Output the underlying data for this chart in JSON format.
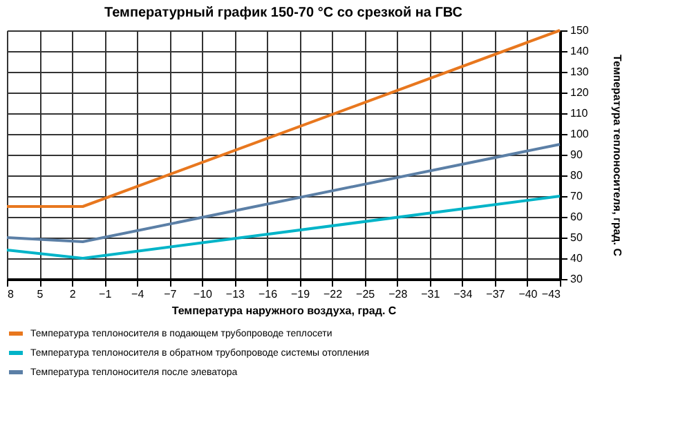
{
  "chart_data": {
    "type": "line",
    "title": "Температурный график 150-70 °С со срезкой на ГВС",
    "xlabel": "Температура наружного воздуха, град. С",
    "ylabel": "Температура теплоносителя, град. С",
    "xlim": [
      8,
      -43
    ],
    "xticks": [
      8,
      5,
      2,
      -1,
      -4,
      -7,
      -10,
      -13,
      -16,
      -19,
      -22,
      -25,
      -28,
      -31,
      -34,
      -37,
      -40,
      -43
    ],
    "ylim": [
      30,
      150
    ],
    "yticks": [
      30,
      40,
      50,
      60,
      70,
      80,
      90,
      100,
      110,
      120,
      130,
      140,
      150
    ],
    "grid": true,
    "legend": "bottom",
    "marker": "none",
    "line_style": "solid",
    "series": [
      {
        "name": "Температура теплоносителя в подающем трубопроводе теплосети",
        "color": "#e8771e",
        "x": [
          8,
          1,
          -43
        ],
        "values": [
          65,
          65,
          150
        ]
      },
      {
        "name": "Температура теплоносителя в обратном трубопроводе системы отопления",
        "color": "#00b4c8",
        "x": [
          8,
          1,
          -43
        ],
        "values": [
          44,
          40,
          70
        ]
      },
      {
        "name": "Температура теплоносителя после элеватора",
        "color": "#5b7fa6",
        "x": [
          8,
          1,
          -43
        ],
        "values": [
          50,
          48,
          95
        ]
      }
    ]
  }
}
